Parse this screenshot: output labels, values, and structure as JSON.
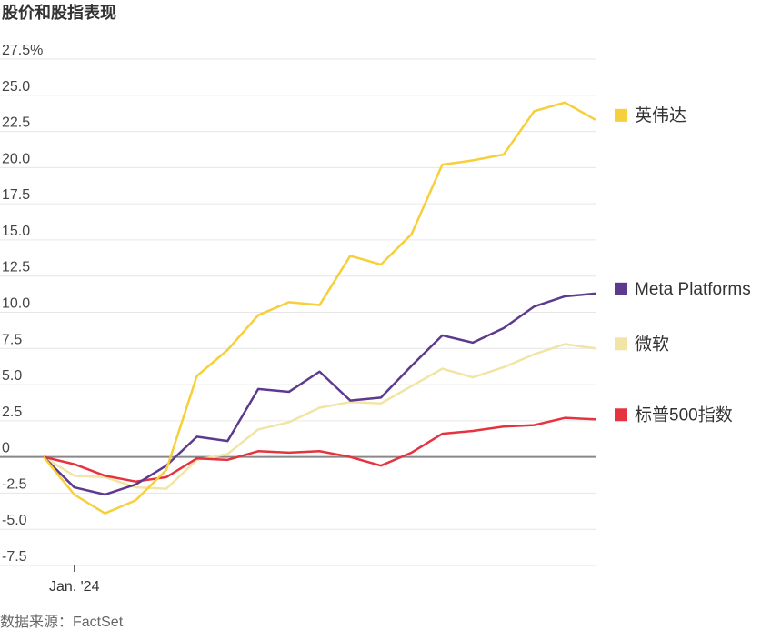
{
  "chart_data": {
    "type": "line",
    "title": "股价和股指表现",
    "source": "数据来源：FactSet",
    "categories": [
      null,
      "Jan. '24",
      null,
      null,
      null,
      null,
      null,
      null,
      null,
      null,
      null,
      null,
      null,
      null,
      null,
      null,
      null,
      null,
      null
    ],
    "series": [
      {
        "name": "微软",
        "color": "#f2e4a4",
        "values": [
          0,
          -1.3,
          -1.4,
          -2.1,
          -2.2,
          -0.2,
          0.2,
          1.9,
          2.4,
          3.4,
          3.8,
          3.7,
          4.9,
          6.1,
          5.5,
          6.2,
          7.1,
          7.8,
          7.5
        ]
      },
      {
        "name": "标普500指数",
        "color": "#e5333f",
        "values": [
          0,
          -0.5,
          -1.3,
          -1.7,
          -1.4,
          -0.1,
          -0.2,
          0.4,
          0.3,
          0.4,
          0.0,
          -0.6,
          0.3,
          1.6,
          1.8,
          2.1,
          2.2,
          2.7,
          2.6
        ]
      },
      {
        "name": "Meta Platforms",
        "color": "#5c3a8e",
        "values": [
          0,
          -2.1,
          -2.6,
          -1.9,
          -0.6,
          1.4,
          1.1,
          4.7,
          4.5,
          5.9,
          3.9,
          4.1,
          6.3,
          8.4,
          7.9,
          8.9,
          10.4,
          11.1,
          11.3
        ]
      },
      {
        "name": "英伟达",
        "color": "#f6cf3a",
        "values": [
          0,
          -2.6,
          -3.9,
          -3.0,
          -0.9,
          5.6,
          7.4,
          9.8,
          10.7,
          10.5,
          13.9,
          13.3,
          15.4,
          20.2,
          20.5,
          20.9,
          23.9,
          24.5,
          23.3
        ]
      }
    ],
    "ylim": [
      -7.5,
      27.5
    ],
    "yticks": [
      {
        "value": 27.5,
        "label": "27.5%"
      },
      {
        "value": 25,
        "label": "25.0"
      },
      22.5,
      {
        "value": 20,
        "label": "20.0"
      },
      17.5,
      {
        "value": 15,
        "label": "15.0"
      },
      12.5,
      {
        "value": 10,
        "label": "10.0"
      },
      7.5,
      {
        "value": 5,
        "label": "5.0"
      },
      2.5,
      0,
      -2.5,
      {
        "value": -5,
        "label": "-5.0"
      },
      -7.5
    ],
    "grid": true
  }
}
